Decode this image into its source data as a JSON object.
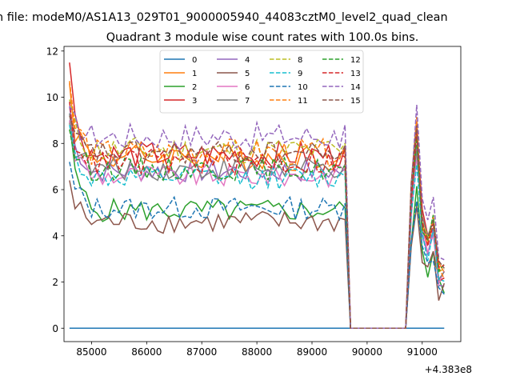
{
  "chart_data": {
    "type": "line",
    "suptitle": "n file: modeM0/AS1A13_029T01_9000005940_44083cztM0_level2_quad_clean",
    "title": "Quadrant 3 module wise count rates with 100.0s bins.",
    "xlabel": "",
    "ylabel": "",
    "x_offset_label": "+4.383e8",
    "xlim": [
      84500,
      91700
    ],
    "ylim": [
      -0.58,
      12.2
    ],
    "xticks": [
      85000,
      86000,
      87000,
      88000,
      89000,
      90000,
      91000
    ],
    "xtick_labels": [
      "85000",
      "86000",
      "87000",
      "88000",
      "89000",
      "90000",
      "91000"
    ],
    "yticks": [
      0,
      2,
      4,
      6,
      8,
      10,
      12
    ],
    "ytick_labels": [
      "0",
      "2",
      "4",
      "6",
      "8",
      "10",
      "12"
    ],
    "grid": false,
    "legend": {
      "placement": "top-center",
      "columns": 4
    },
    "x_start": 84600,
    "x_step": 100,
    "n_points": 69,
    "series": [
      {
        "name": "0",
        "color": "#1f77b4",
        "dash": "solid",
        "mid": 0.0,
        "amp": 0.0,
        "gap_end": 0.0,
        "seed": 0,
        "zero": true
      },
      {
        "name": "1",
        "color": "#ff7f0e",
        "dash": "solid",
        "mid": 7.4,
        "amp": 0.6,
        "gap_end": 7.6,
        "seed": 1,
        "start": 10.6
      },
      {
        "name": "2",
        "color": "#2ca02c",
        "dash": "solid",
        "mid": 5.1,
        "amp": 0.5,
        "gap_end": 5.2,
        "seed": 2,
        "start": 8.9
      },
      {
        "name": "3",
        "color": "#d62728",
        "dash": "solid",
        "mid": 7.5,
        "amp": 0.6,
        "gap_end": 7.8,
        "seed": 3,
        "start": 11.5
      },
      {
        "name": "4",
        "color": "#9467bd",
        "dash": "solid",
        "mid": 6.8,
        "amp": 0.5,
        "gap_end": 6.9,
        "seed": 4,
        "start": 9.6
      },
      {
        "name": "5",
        "color": "#8c564b",
        "dash": "solid",
        "mid": 4.6,
        "amp": 0.5,
        "gap_end": 4.7,
        "seed": 5,
        "start": 6.4
      },
      {
        "name": "6",
        "color": "#e377c2",
        "dash": "solid",
        "mid": 6.6,
        "amp": 0.5,
        "gap_end": 6.8,
        "seed": 6,
        "start": 9.0
      },
      {
        "name": "7",
        "color": "#7f7f7f",
        "dash": "solid",
        "mid": 6.9,
        "amp": 0.5,
        "gap_end": 7.1,
        "seed": 7,
        "start": 9.3
      },
      {
        "name": "8",
        "color": "#bcbd22",
        "dash": "dashed",
        "mid": 7.7,
        "amp": 0.6,
        "gap_end": 8.0,
        "seed": 8,
        "start": 9.9
      },
      {
        "name": "9",
        "color": "#17becf",
        "dash": "dashed",
        "mid": 6.5,
        "amp": 0.5,
        "gap_end": 6.6,
        "seed": 9,
        "start": 8.8
      },
      {
        "name": "10",
        "color": "#1f77b4",
        "dash": "dashed",
        "mid": 5.2,
        "amp": 0.5,
        "gap_end": 5.4,
        "seed": 10,
        "start": 7.2
      },
      {
        "name": "11",
        "color": "#ff7f0e",
        "dash": "dashed",
        "mid": 7.6,
        "amp": 0.6,
        "gap_end": 7.9,
        "seed": 11,
        "start": 10.7
      },
      {
        "name": "12",
        "color": "#2ca02c",
        "dash": "dashed",
        "mid": 6.9,
        "amp": 0.5,
        "gap_end": 7.0,
        "seed": 12,
        "start": 8.6
      },
      {
        "name": "13",
        "color": "#d62728",
        "dash": "dashed",
        "mid": 7.2,
        "amp": 0.6,
        "gap_end": 7.4,
        "seed": 13,
        "start": 9.8
      },
      {
        "name": "14",
        "color": "#9467bd",
        "dash": "dashed",
        "mid": 8.3,
        "amp": 0.6,
        "gap_end": 8.8,
        "seed": 14,
        "start": 9.6
      },
      {
        "name": "15",
        "color": "#8c564b",
        "dash": "dashed",
        "mid": 7.6,
        "amp": 0.5,
        "gap_end": 7.9,
        "seed": 15,
        "start": 9.2
      }
    ]
  }
}
